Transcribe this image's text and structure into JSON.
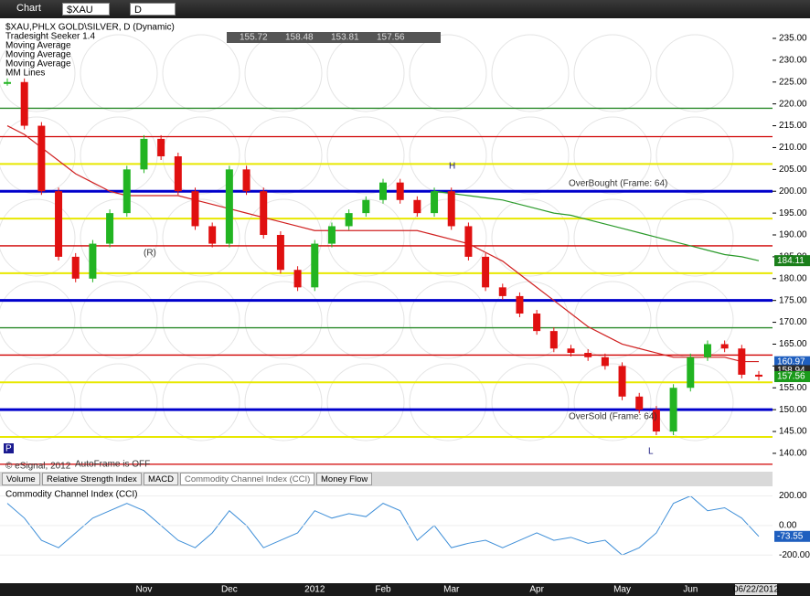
{
  "toolbar": {
    "title": "Chart",
    "symbol": "$XAU",
    "interval": "D"
  },
  "legend": [
    "$XAU,PHLX GOLD\\SILVER, D (Dynamic)",
    "Tradesight Seeker 1.4",
    "Moving Average",
    "Moving Average",
    "Moving Average",
    "MM Lines"
  ],
  "ohlc_box": [
    155.72,
    158.48,
    153.81,
    157.56
  ],
  "annotations": {
    "overbought": "OverBought (Frame: 64)",
    "oversold": "OverSold (Frame: 64)",
    "high": "H",
    "low": "L",
    "r": "(R)",
    "autoframe": "AutoFrame is OFF",
    "copyright": "© eSignal, 2012",
    "p": "P"
  },
  "tabs": [
    "Volume",
    "Relative Strength Index",
    "MACD",
    "Commodity Channel Index (CCI)",
    "Money Flow"
  ],
  "chart_data": [
    {
      "type": "candlestick",
      "categories": [
        null,
        null,
        null,
        null,
        null,
        null,
        null,
        null,
        "Nov",
        null,
        null,
        null,
        null,
        "Dec",
        null,
        null,
        null,
        null,
        "2012",
        null,
        null,
        null,
        "Feb",
        null,
        null,
        null,
        "Mar",
        null,
        null,
        null,
        null,
        "Apr",
        null,
        null,
        null,
        null,
        "May",
        null,
        null,
        null,
        "Jun",
        null,
        null,
        null,
        "06/22/2012"
      ],
      "values": [
        225,
        215,
        200,
        185,
        180,
        188,
        195,
        205,
        212,
        208,
        200,
        192,
        188,
        205,
        200,
        190,
        182,
        178,
        188,
        192,
        195,
        198,
        202,
        198,
        195,
        200,
        192,
        185,
        178,
        176,
        172,
        168,
        164,
        163,
        162,
        160,
        153,
        150,
        145,
        155,
        162,
        165,
        164,
        158,
        157.56
      ],
      "up_color": "#22b422",
      "down_color": "#e01010",
      "moving_averages": [
        {
          "color": "#d02020",
          "values": [
            215,
            213,
            210,
            207,
            204,
            202,
            200,
            199,
            199,
            199,
            199,
            198,
            197,
            196,
            195,
            194,
            193,
            192,
            191,
            191,
            191,
            191,
            191,
            191,
            191,
            190,
            189,
            188,
            186,
            184,
            181,
            178,
            175,
            172,
            169,
            167,
            165,
            164,
            163,
            162,
            162,
            162,
            162,
            161,
            161
          ]
        },
        {
          "color": "#2a9a2a",
          "values": [
            null,
            null,
            null,
            null,
            null,
            null,
            null,
            null,
            null,
            null,
            null,
            null,
            null,
            null,
            null,
            null,
            null,
            null,
            null,
            null,
            null,
            null,
            null,
            null,
            null,
            200,
            199.5,
            199,
            198.5,
            198,
            197,
            196,
            195,
            194.5,
            193.5,
            192.5,
            191.5,
            190.5,
            189.5,
            188.5,
            187.5,
            186.5,
            185.5,
            185,
            184.11
          ]
        }
      ],
      "levels": [
        {
          "value": 219,
          "color": "#2a8a2a"
        },
        {
          "value": 212.5,
          "color": "#d00000"
        },
        {
          "value": 206.25,
          "color": "#e8e800"
        },
        {
          "value": 200,
          "color": "#0000cc"
        },
        {
          "value": 193.75,
          "color": "#e8e800"
        },
        {
          "value": 187.5,
          "color": "#d00000"
        },
        {
          "value": 181.25,
          "color": "#e8e800"
        },
        {
          "value": 175,
          "color": "#0000cc"
        },
        {
          "value": 168.75,
          "color": "#2a8a2a"
        },
        {
          "value": 162.5,
          "color": "#d00000"
        },
        {
          "value": 156.25,
          "color": "#e8e800"
        },
        {
          "value": 150,
          "color": "#0000cc"
        },
        {
          "value": 143.75,
          "color": "#e8e800"
        },
        {
          "value": 137.5,
          "color": "#d00000"
        }
      ],
      "ylim": [
        135.8,
        239.6
      ],
      "yticks": [
        {
          "value": 140,
          "label": "140.00"
        },
        {
          "value": 145,
          "label": "145.00"
        },
        {
          "value": 150,
          "label": "150.00"
        },
        {
          "value": 155,
          "label": "155.00"
        },
        {
          "value": 160,
          "label": "160.00"
        },
        {
          "value": 165,
          "label": "165.00"
        },
        {
          "value": 170,
          "label": "170.00"
        },
        {
          "value": 175,
          "label": "175.00"
        },
        {
          "value": 180,
          "label": "180.00"
        },
        {
          "value": 185,
          "label": "185.00"
        },
        {
          "value": 190,
          "label": "190.00"
        },
        {
          "value": 195,
          "label": "195.00"
        },
        {
          "value": 200,
          "label": "200.00"
        },
        {
          "value": 205,
          "label": "205.00"
        },
        {
          "value": 210,
          "label": "210.00"
        },
        {
          "value": 215,
          "label": "215.00"
        },
        {
          "value": 220,
          "label": "220.00"
        },
        {
          "value": 225,
          "label": "225.00"
        },
        {
          "value": 230,
          "label": "230.00"
        },
        {
          "value": 235,
          "label": "235.00"
        }
      ],
      "price_tags": [
        {
          "value": 184.11,
          "color": "#1a7f1a"
        },
        {
          "value": 160.97,
          "color": "#1f5fbf"
        },
        {
          "value": 158.94,
          "color": "#2b2b2b"
        },
        {
          "value": 157.56,
          "color": "#1a9a1a"
        }
      ]
    },
    {
      "type": "line",
      "title": "Commodity Channel Index (CCI)",
      "color": "#3f8fd8",
      "values": [
        150,
        50,
        -100,
        -150,
        -50,
        50,
        100,
        150,
        100,
        0,
        -100,
        -150,
        -50,
        100,
        0,
        -150,
        -100,
        -50,
        100,
        50,
        80,
        60,
        150,
        100,
        -100,
        0,
        -150,
        -120,
        -100,
        -150,
        -100,
        -50,
        -100,
        -80,
        -120,
        -100,
        -200,
        -150,
        -50,
        150,
        200,
        100,
        120,
        50,
        -73.55
      ],
      "ylim": [
        -390,
        265
      ],
      "yticks": [
        {
          "value": -200,
          "label": "-200.00"
        },
        {
          "value": 0,
          "label": "0.00"
        },
        {
          "value": 200,
          "label": "200.00"
        }
      ],
      "price_tags": [
        {
          "value": -73.55,
          "color": "#1f5fbf"
        }
      ]
    }
  ]
}
